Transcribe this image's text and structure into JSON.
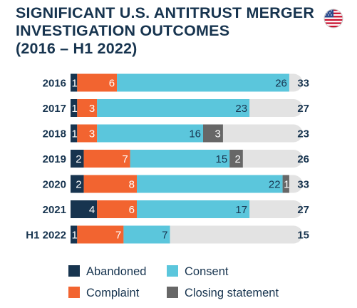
{
  "title_lines": [
    "SIGNIFICANT U.S. ANTITRUST MERGER",
    "INVESTIGATION OUTCOMES",
    "(2016 – H1 2022)"
  ],
  "colors": {
    "Abandoned": "#17344f",
    "Complaint": "#f26430",
    "Consent": "#5bc6dc",
    "Closing statement": "#676767",
    "track": "#e3e3e3",
    "text_dark": "#17344f",
    "flag_red": "#c8102e",
    "flag_blue": "#2b4a8c"
  },
  "flag_icon": "us-flag-icon",
  "chart_data": {
    "type": "bar",
    "orientation": "horizontal",
    "stacked": true,
    "categories": [
      "2016",
      "2017",
      "2018",
      "2019",
      "2020",
      "2021",
      "H1 2022"
    ],
    "series": [
      {
        "name": "Abandoned",
        "values": [
          1,
          1,
          1,
          2,
          2,
          4,
          1
        ]
      },
      {
        "name": "Complaint",
        "values": [
          6,
          3,
          3,
          7,
          8,
          6,
          7
        ]
      },
      {
        "name": "Consent",
        "values": [
          26,
          23,
          16,
          15,
          22,
          17,
          7
        ]
      },
      {
        "name": "Closing statement",
        "values": [
          null,
          null,
          3,
          2,
          1,
          null,
          null
        ]
      }
    ],
    "totals": [
      33,
      27,
      23,
      26,
      33,
      27,
      15
    ],
    "xlim": [
      0,
      35
    ],
    "grid": false,
    "legend_position": "bottom"
  }
}
